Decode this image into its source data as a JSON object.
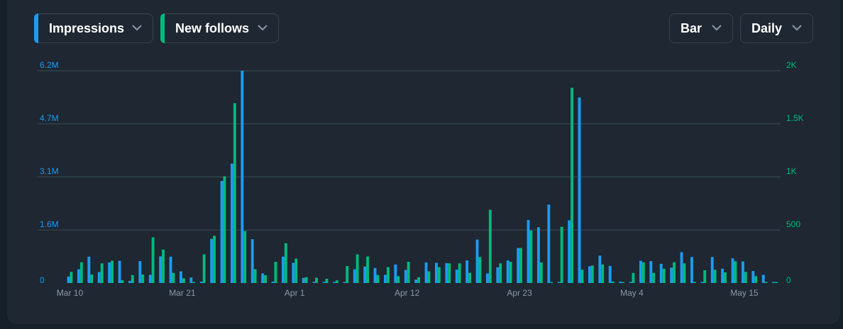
{
  "controls": {
    "metric1": {
      "label": "Impressions",
      "color": "#1d9bf0"
    },
    "metric2": {
      "label": "New follows",
      "color": "#00ba7c"
    },
    "chart_type": "Bar",
    "interval": "Daily"
  },
  "icons": {
    "dropdown": "chevron-down-icon"
  },
  "colors": {
    "background": "#15202b",
    "card": "#1e2732",
    "grid": "#3a4d57",
    "axis_text": "#8b98a5"
  },
  "chart_data": {
    "type": "bar",
    "title": "",
    "xlabel": "",
    "ylabel": "",
    "x_start": "Mar 10",
    "x_end": "May 18",
    "x_tick_labels": [
      "Mar 10",
      "Mar 21",
      "Apr 1",
      "Apr 12",
      "Apr 23",
      "May 4",
      "May 15"
    ],
    "y_left": {
      "ticks": [
        "0",
        "1.6M",
        "3.1M",
        "4.7M",
        "6.2M"
      ],
      "ylim": [
        0,
        6200000
      ]
    },
    "y_right": {
      "ticks": [
        "0",
        "500",
        "1K",
        "1.5K",
        "2K"
      ],
      "ylim": [
        0,
        2000
      ]
    },
    "grid": true,
    "series": [
      {
        "name": "Impressions",
        "axis": "left",
        "values": [
          190000,
          400000,
          770000,
          320000,
          600000,
          650000,
          60000,
          640000,
          240000,
          780000,
          770000,
          340000,
          160000,
          40000,
          1290000,
          2980000,
          3490000,
          6200000,
          1280000,
          280000,
          40000,
          770000,
          590000,
          150000,
          10000,
          20000,
          10000,
          10000,
          400000,
          480000,
          440000,
          240000,
          540000,
          380000,
          100000,
          600000,
          590000,
          580000,
          390000,
          660000,
          1270000,
          280000,
          460000,
          660000,
          1020000,
          1840000,
          1630000,
          2290000,
          30000,
          1830000,
          5420000,
          490000,
          800000,
          500000,
          40000,
          20000,
          650000,
          640000,
          560000,
          450000,
          900000,
          760000,
          30000,
          760000,
          420000,
          720000,
          630000,
          350000,
          240000,
          30000
        ]
      },
      {
        "name": "New follows",
        "axis": "right",
        "values": [
          105,
          195,
          80,
          185,
          210,
          25,
          75,
          80,
          430,
          315,
          95,
          45,
          10,
          270,
          445,
          1005,
          1695,
          490,
          130,
          75,
          200,
          375,
          230,
          55,
          50,
          40,
          25,
          160,
          270,
          250,
          75,
          150,
          65,
          200,
          55,
          110,
          150,
          185,
          185,
          95,
          245,
          690,
          185,
          200,
          330,
          495,
          195,
          5,
          530,
          1840,
          125,
          165,
          175,
          15,
          10,
          95,
          195,
          95,
          135,
          195,
          185,
          10,
          120,
          125,
          100,
          205,
          105,
          65,
          10,
          10
        ]
      }
    ]
  }
}
